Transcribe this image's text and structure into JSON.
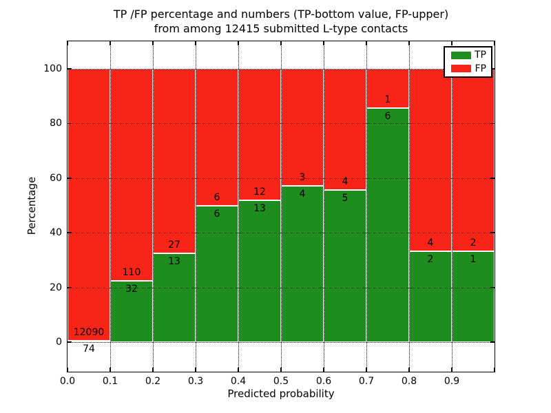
{
  "title": {
    "line1": "TP /FP percentage and numbers (TP-bottom value, FP-upper)",
    "line2": "from among 12415 submitted L-type contacts"
  },
  "colors": {
    "tp": "#1e8c1e",
    "fp": "#f82418",
    "grid": "#000000",
    "background": "#ffffff"
  },
  "chart_data": {
    "type": "bar",
    "stacked": true,
    "normalized_to_percent": true,
    "title": "TP /FP percentage and numbers (TP-bottom value, FP-upper) from among 12415 submitted L-type contacts",
    "xlabel": "Predicted probability",
    "ylabel": "Percentage",
    "total_contacts": 12415,
    "x_tick_labels": [
      "0.0",
      "0.1",
      "0.2",
      "0.3",
      "0.4",
      "0.5",
      "0.6",
      "0.7",
      "0.8",
      "0.9"
    ],
    "y_tick_values": [
      0,
      20,
      40,
      60,
      80,
      100
    ],
    "xlim": [
      0.0,
      1.0
    ],
    "ylim": [
      -10.8,
      110.1
    ],
    "grid": "dotted",
    "legend_position": "upper-right",
    "bins": [
      {
        "x0": 0.0,
        "x1": 0.1,
        "tp": 74,
        "fp": 12090
      },
      {
        "x0": 0.1,
        "x1": 0.2,
        "tp": 32,
        "fp": 110
      },
      {
        "x0": 0.2,
        "x1": 0.3,
        "tp": 13,
        "fp": 27
      },
      {
        "x0": 0.3,
        "x1": 0.4,
        "tp": 6,
        "fp": 6
      },
      {
        "x0": 0.4,
        "x1": 0.5,
        "tp": 13,
        "fp": 12
      },
      {
        "x0": 0.5,
        "x1": 0.6,
        "tp": 4,
        "fp": 3
      },
      {
        "x0": 0.6,
        "x1": 0.7,
        "tp": 5,
        "fp": 4
      },
      {
        "x0": 0.7,
        "x1": 0.8,
        "tp": 6,
        "fp": 1
      },
      {
        "x0": 0.8,
        "x1": 0.9,
        "tp": 2,
        "fp": 4
      },
      {
        "x0": 0.9,
        "x1": 1.0,
        "tp": 1,
        "fp": 2
      }
    ],
    "series": [
      {
        "name": "TP",
        "color": "#1e8c1e",
        "values": [
          74,
          32,
          13,
          6,
          13,
          4,
          5,
          6,
          2,
          1
        ]
      },
      {
        "name": "FP",
        "color": "#f82418",
        "values": [
          12090,
          110,
          27,
          6,
          12,
          3,
          4,
          1,
          4,
          2
        ]
      }
    ]
  }
}
